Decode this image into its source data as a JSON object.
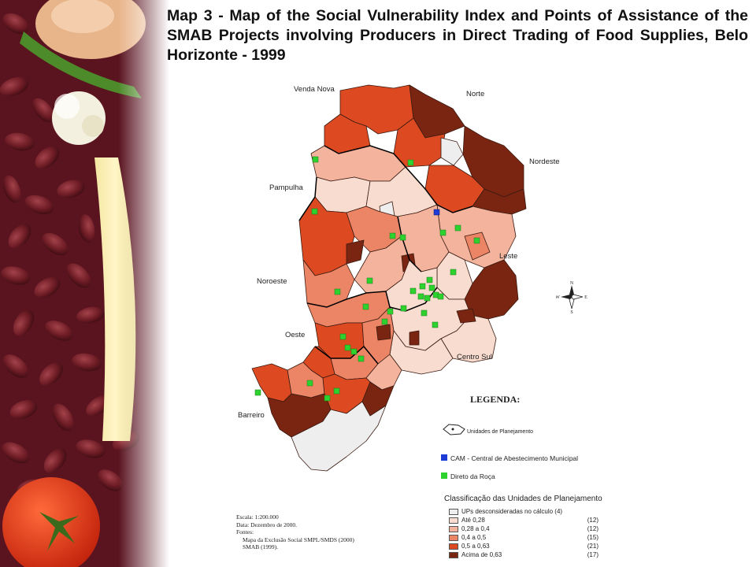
{
  "title": "Map 3  - Map of the Social Vulnerability Index and Points of Assistance of the SMAB Projects involving Producers in Direct Trading of Food Supplies, Belo Horizonte - 1999",
  "regions": [
    "Venda Nova",
    "Norte",
    "Nordeste",
    "Pampulha",
    "Leste",
    "Noroeste",
    "Oeste",
    "Centro Sul",
    "Barreiro"
  ],
  "compass": {
    "n": "N",
    "s": "S",
    "e": "E",
    "w": "W"
  },
  "legend": {
    "heading": "LEGENDA:",
    "planning_units": "Unidades de Planejamento",
    "cam": "CAM - Central de Abestecimento Municipal",
    "direto": "Direto da Roça",
    "classification_title": "Classificação das Unidades de Planejamento",
    "classes": [
      {
        "label": "UPs desconsideradas no cálculo (4)",
        "count": "",
        "color": "#eeeeee"
      },
      {
        "label": "Até 0,28",
        "count": "(12)",
        "color": "#f9dcd0"
      },
      {
        "label": "0,28 a  0,4",
        "count": "(12)",
        "color": "#f3b39d"
      },
      {
        "label": "0,4 a  0,5",
        "count": "(15)",
        "color": "#ec8466"
      },
      {
        "label": "0,5 a 0,63",
        "count": "(21)",
        "color": "#dd4a22"
      },
      {
        "label": "Acima de 0,63",
        "count": "(17)",
        "color": "#7a2512"
      }
    ],
    "colors": {
      "cam": "#1f3bd6",
      "direto": "#2ed22e"
    }
  },
  "info": {
    "scale": "Escala: 1:200.000",
    "date": "Data: Dezembro de 2000.",
    "sources_label": "Fontes:",
    "source1": "Mapa da Exclusão Social SMPL/SMDS (2000)",
    "source2": "SMAB (1999)."
  }
}
